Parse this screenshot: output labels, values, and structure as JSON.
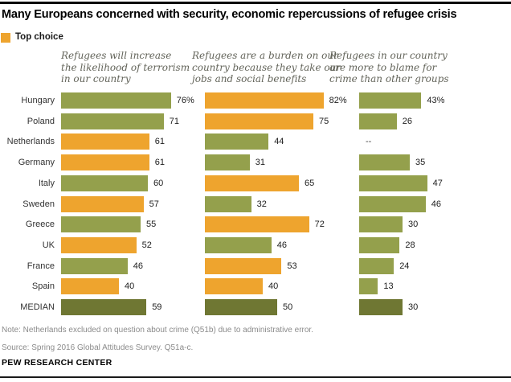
{
  "page": {
    "title": "Many Europeans concerned with security, economic repercussions of refugee crisis",
    "legend_label": "Top choice",
    "note": "Note: Netherlands excluded on question about crime (Q51b) due to administrative error.",
    "source": "Source: Spring 2016 Global Attitudes Survey. Q51a-c.",
    "branding": "PEW RESEARCH CENTER"
  },
  "colors": {
    "orange": "#EEA42E",
    "green": "#94A04C",
    "dark_green": "#6F7733"
  },
  "chart_data": {
    "type": "bar",
    "orientation": "horizontal",
    "unit": "%",
    "legend": {
      "label": "Top choice",
      "color_key": "orange",
      "position": "top-left"
    },
    "categories": [
      "Hungary",
      "Poland",
      "Netherlands",
      "Germany",
      "Italy",
      "Sweden",
      "Greece",
      "UK",
      "France",
      "Spain",
      "MEDIAN"
    ],
    "xlim": [
      0,
      100
    ],
    "panels": [
      {
        "heading": "Refugees will increase\nthe likelihood of terrorism\nin our country",
        "values": [
          76,
          71,
          61,
          61,
          60,
          57,
          55,
          52,
          46,
          40,
          59
        ],
        "display": [
          "76%",
          "71",
          "61",
          "61",
          "60",
          "57",
          "55",
          "52",
          "46",
          "40",
          "59"
        ],
        "colors": [
          "green",
          "green",
          "orange",
          "orange",
          "green",
          "orange",
          "green",
          "orange",
          "green",
          "orange",
          "dark_green"
        ]
      },
      {
        "heading": "Refugees are a burden on our\ncountry because they take our\njobs and social benefits",
        "values": [
          82,
          75,
          44,
          31,
          65,
          32,
          72,
          46,
          53,
          40,
          50
        ],
        "display": [
          "82%",
          "75",
          "44",
          "31",
          "65",
          "32",
          "72",
          "46",
          "53",
          "40",
          "50"
        ],
        "colors": [
          "orange",
          "orange",
          "green",
          "green",
          "orange",
          "green",
          "orange",
          "green",
          "orange",
          "orange",
          "dark_green"
        ]
      },
      {
        "heading": "Refugees in our country\nare more to blame for\ncrime than other groups",
        "values": [
          43,
          26,
          null,
          35,
          47,
          46,
          30,
          28,
          24,
          13,
          30
        ],
        "display": [
          "43%",
          "26",
          "--",
          "35",
          "47",
          "46",
          "30",
          "28",
          "24",
          "13",
          "30"
        ],
        "colors": [
          "green",
          "green",
          null,
          "green",
          "green",
          "green",
          "green",
          "green",
          "green",
          "green",
          "dark_green"
        ]
      }
    ]
  }
}
